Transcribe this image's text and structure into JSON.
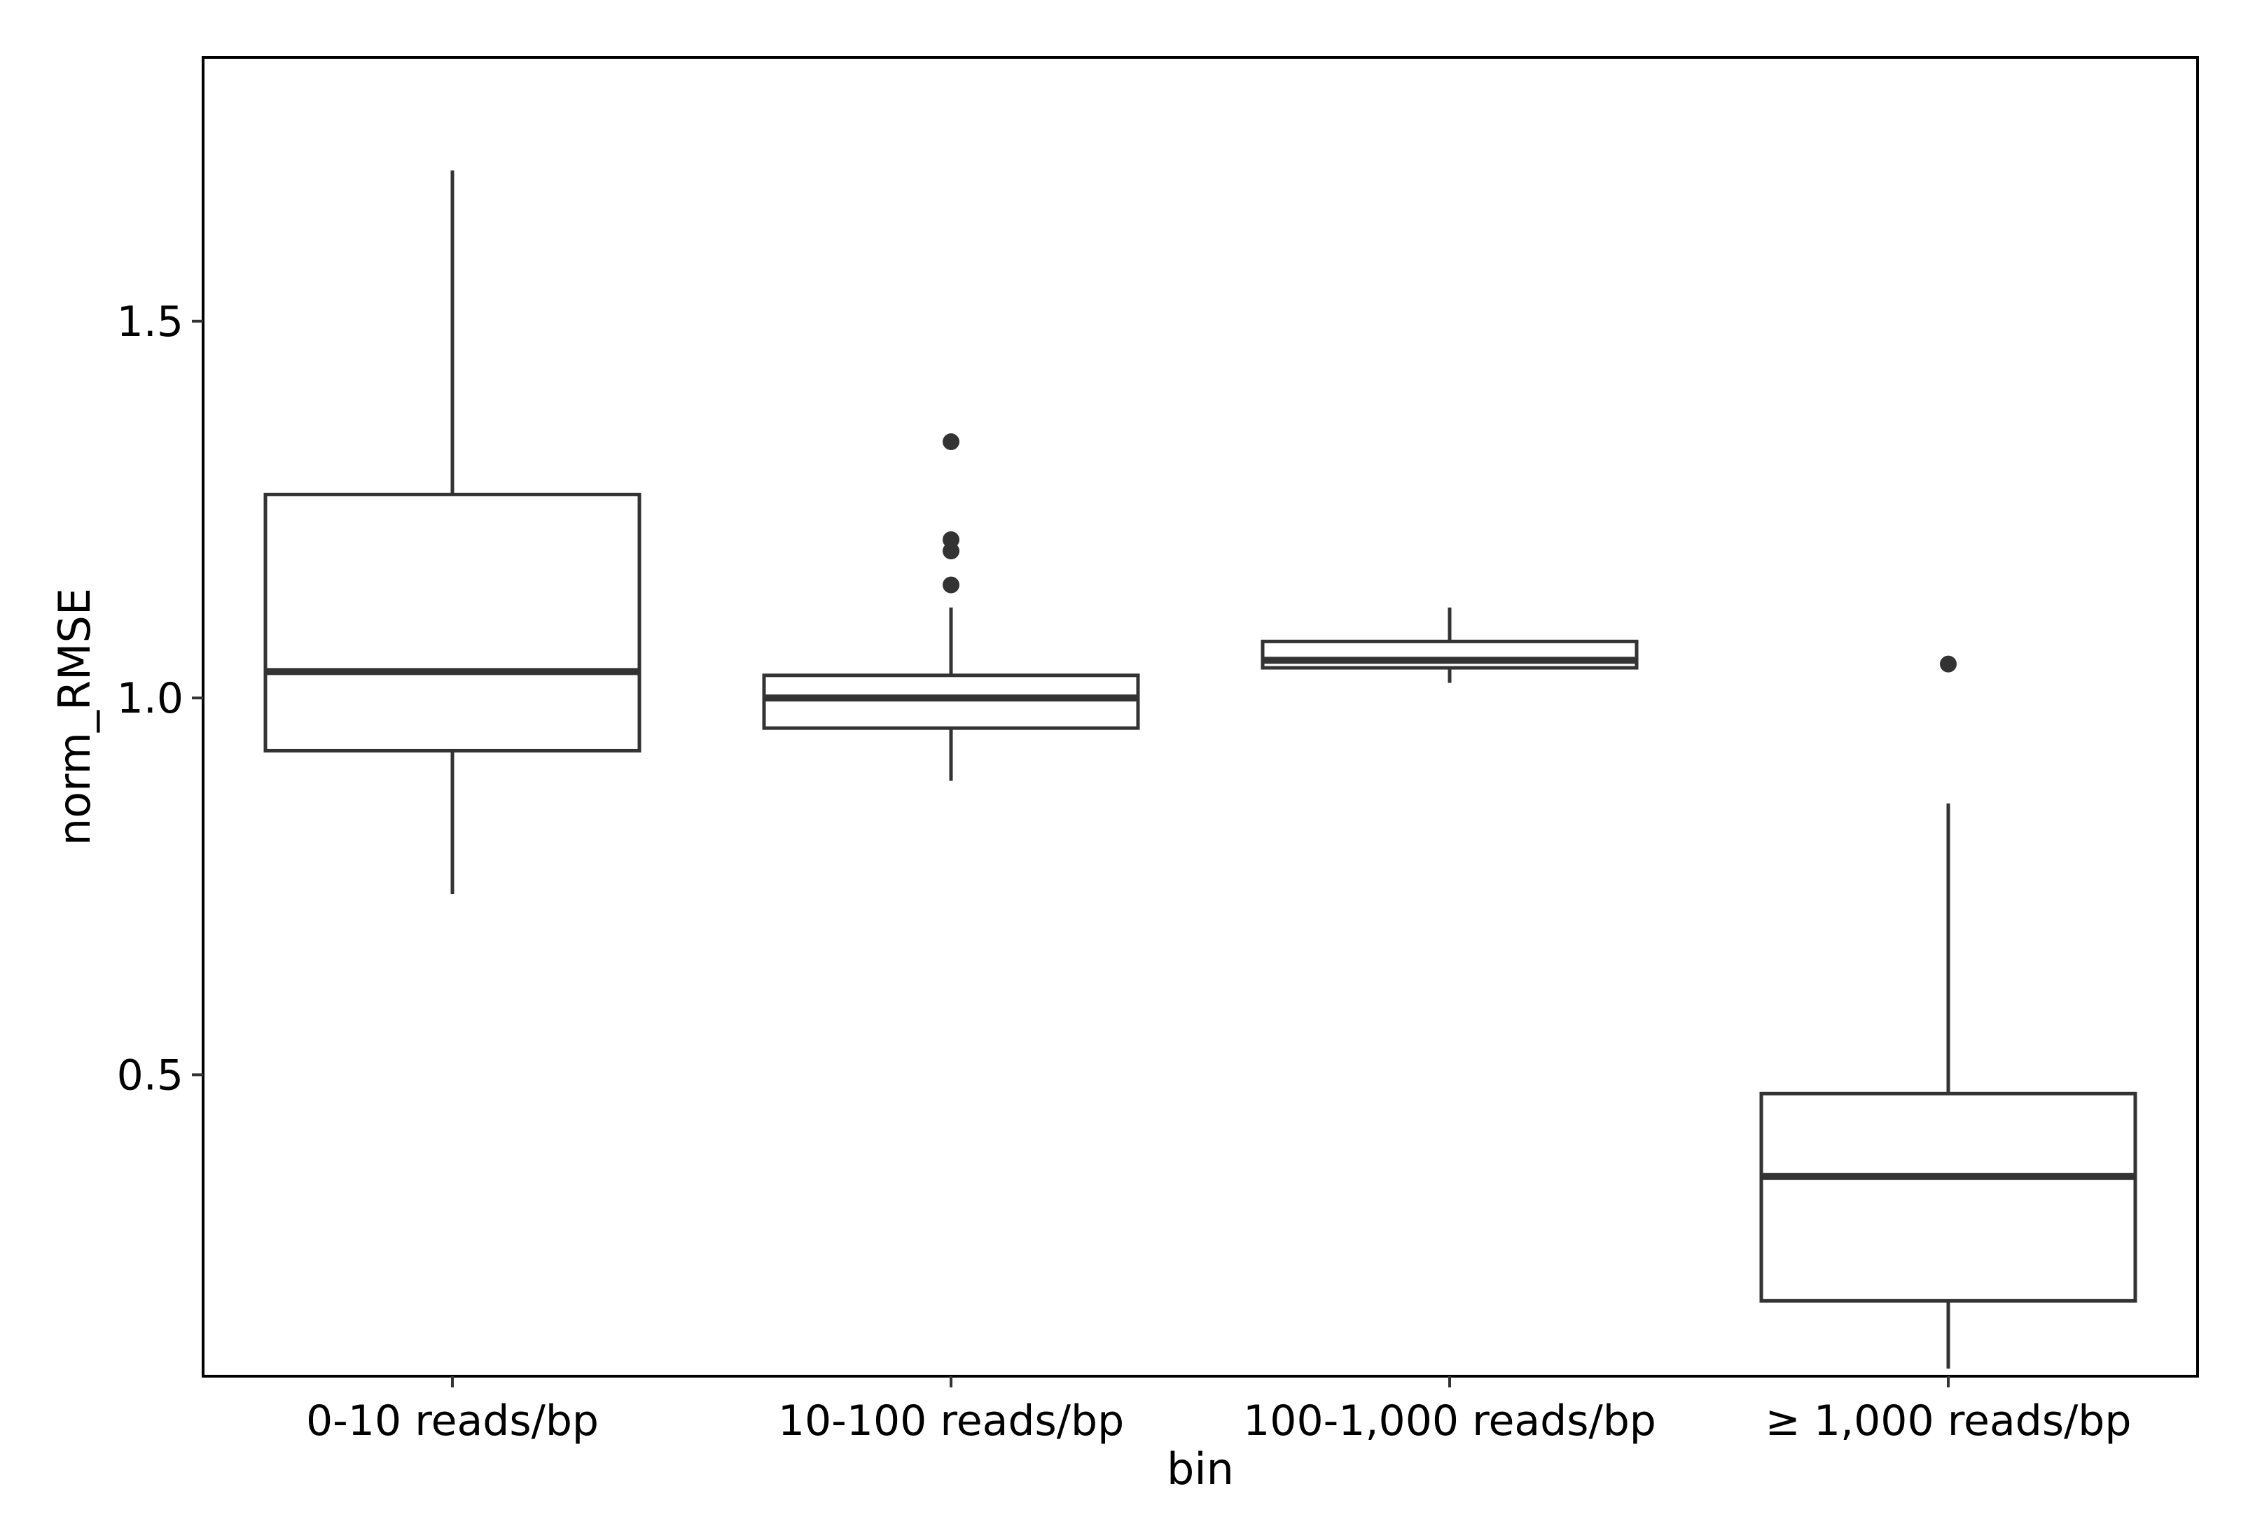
{
  "chart_data": {
    "type": "box",
    "xlabel": "bin",
    "ylabel": "norm_RMSE",
    "categories": [
      "0-10 reads/bp",
      "10-100 reads/bp",
      "100-1,000 reads/bp",
      "≥ 1,000 reads/bp"
    ],
    "y_ticks": [
      0.5,
      1.0,
      1.5
    ],
    "y_tick_labels": [
      "0.5",
      "1.0",
      "1.5"
    ],
    "ylim": [
      0.1,
      1.85
    ],
    "grid": false,
    "legend": "none",
    "boxes": [
      {
        "category": "0-10 reads/bp",
        "whisker_low": 0.74,
        "q1": 0.93,
        "median": 1.035,
        "q3": 1.27,
        "whisker_high": 1.7,
        "outliers": []
      },
      {
        "category": "10-100 reads/bp",
        "whisker_low": 0.89,
        "q1": 0.96,
        "median": 1.0,
        "q3": 1.03,
        "whisker_high": 1.12,
        "outliers": [
          1.15,
          1.195,
          1.21,
          1.34
        ]
      },
      {
        "category": "100-1,000 reads/bp",
        "whisker_low": 1.02,
        "q1": 1.04,
        "median": 1.05,
        "q3": 1.075,
        "whisker_high": 1.12,
        "outliers": []
      },
      {
        "category": "≥ 1,000 reads/bp",
        "whisker_low": 0.11,
        "q1": 0.2,
        "median": 0.365,
        "q3": 0.475,
        "whisker_high": 0.86,
        "outliers": [
          1.045
        ]
      }
    ],
    "colors": {
      "stroke": "#333333",
      "fill": "#ffffff",
      "axis": "#000000"
    }
  }
}
